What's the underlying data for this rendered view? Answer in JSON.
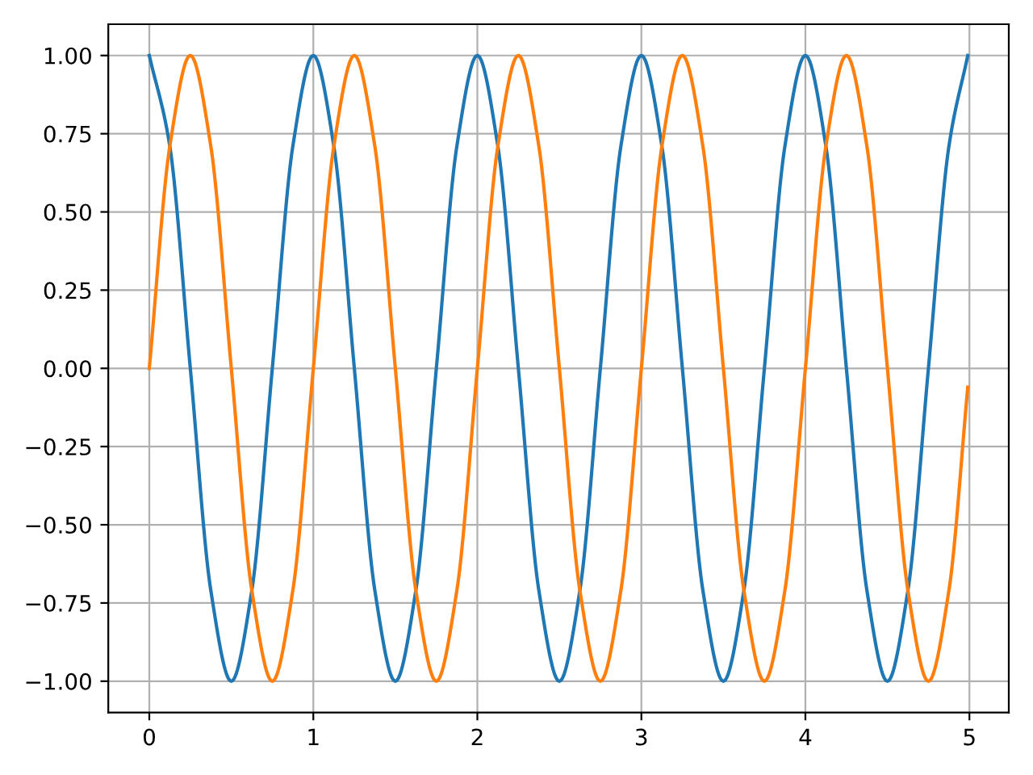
{
  "chart_data": {
    "type": "line",
    "x": [
      0,
      0.125,
      0.25,
      0.375,
      0.5,
      0.625,
      0.75,
      0.875,
      1,
      1.125,
      1.25,
      1.375,
      1.5,
      1.625,
      1.75,
      1.875,
      2,
      2.125,
      2.25,
      2.375,
      2.5,
      2.625,
      2.75,
      2.875,
      3,
      3.125,
      3.25,
      3.375,
      3.5,
      3.625,
      3.75,
      3.875,
      4,
      4.125,
      4.25,
      4.375,
      4.5,
      4.625,
      4.75,
      4.875,
      4.99
    ],
    "series": [
      {
        "color": "#1f77b4",
        "values": [
          1,
          0.71,
          0,
          -0.71,
          -1,
          -0.71,
          0,
          0.71,
          1,
          0.71,
          0,
          -0.71,
          -1,
          -0.71,
          0,
          0.71,
          1,
          0.71,
          0,
          -0.71,
          -1,
          -0.71,
          0,
          0.71,
          1,
          0.71,
          0,
          -0.71,
          -1,
          -0.71,
          0,
          0.71,
          1,
          0.71,
          0,
          -0.71,
          -1,
          -0.71,
          0,
          0.71,
          1
        ]
      },
      {
        "color": "#ff7f0e",
        "values": [
          0,
          0.71,
          1,
          0.71,
          0,
          -0.71,
          -1,
          -0.71,
          0,
          0.71,
          1,
          0.71,
          0,
          -0.71,
          -1,
          -0.71,
          0,
          0.71,
          1,
          0.71,
          0,
          -0.71,
          -1,
          -0.71,
          0,
          0.71,
          1,
          0.71,
          0,
          -0.71,
          -1,
          -0.71,
          0,
          0.71,
          1,
          0.71,
          0,
          -0.71,
          -1,
          -0.71,
          -0.06
        ]
      }
    ],
    "xlim": [
      -0.25,
      5.24
    ],
    "ylim": [
      -1.1,
      1.1
    ],
    "xticks": [
      0,
      1,
      2,
      3,
      4,
      5
    ],
    "yticks": [
      {
        "value": -1,
        "label": "−1.00"
      },
      {
        "value": -0.75,
        "label": "−0.75"
      },
      {
        "value": -0.5,
        "label": "−0.50"
      },
      {
        "value": -0.25,
        "label": "−0.25"
      },
      {
        "value": 0,
        "label": "0.00"
      },
      {
        "value": 0.25,
        "label": "0.25"
      },
      {
        "value": 0.5,
        "label": "0.50"
      },
      {
        "value": 0.75,
        "label": "0.75"
      },
      {
        "value": 1,
        "label": "1.00"
      }
    ],
    "grid": true
  }
}
